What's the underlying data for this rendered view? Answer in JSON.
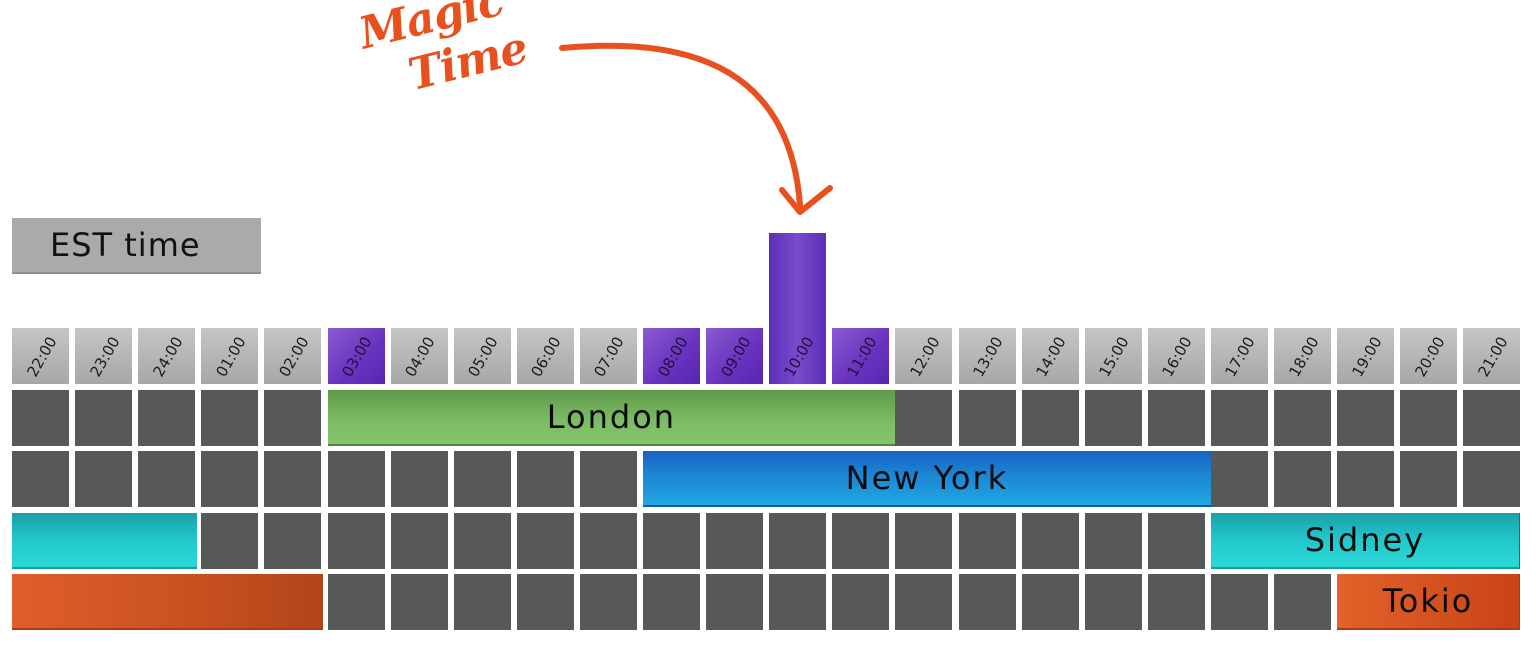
{
  "title": "EST time",
  "annotation": {
    "line1": "Magic",
    "line2": "Time",
    "color": "#e8501d"
  },
  "hours": [
    "22:00",
    "23:00",
    "24:00",
    "01:00",
    "02:00",
    "03:00",
    "04:00",
    "05:00",
    "06:00",
    "07:00",
    "08:00",
    "09:00",
    "10:00",
    "11:00",
    "12:00",
    "13:00",
    "14:00",
    "15:00",
    "16:00",
    "17:00",
    "18:00",
    "19:00",
    "20:00",
    "21:00"
  ],
  "magic_hours": [
    "03:00",
    "08:00",
    "09:00",
    "10:00",
    "11:00"
  ],
  "peak_hour": "10:00",
  "sessions": [
    {
      "row": 0,
      "name": "London",
      "label": "London",
      "start": 5,
      "end": 13,
      "color": "#7cba63"
    },
    {
      "row": 1,
      "name": "New York",
      "label": "New York",
      "start": 10,
      "end": 18,
      "color": "#1b86d4"
    },
    {
      "row": 2,
      "name": "Sidney",
      "label": "Sidney",
      "start": 19,
      "end": 23,
      "color": "#22c8cc",
      "wrap_to": 3
    },
    {
      "row": 3,
      "name": "Tokio",
      "label": "Tokio",
      "start": 21,
      "end": 23,
      "color": "#d2501e",
      "wrap_to": 5
    }
  ]
}
